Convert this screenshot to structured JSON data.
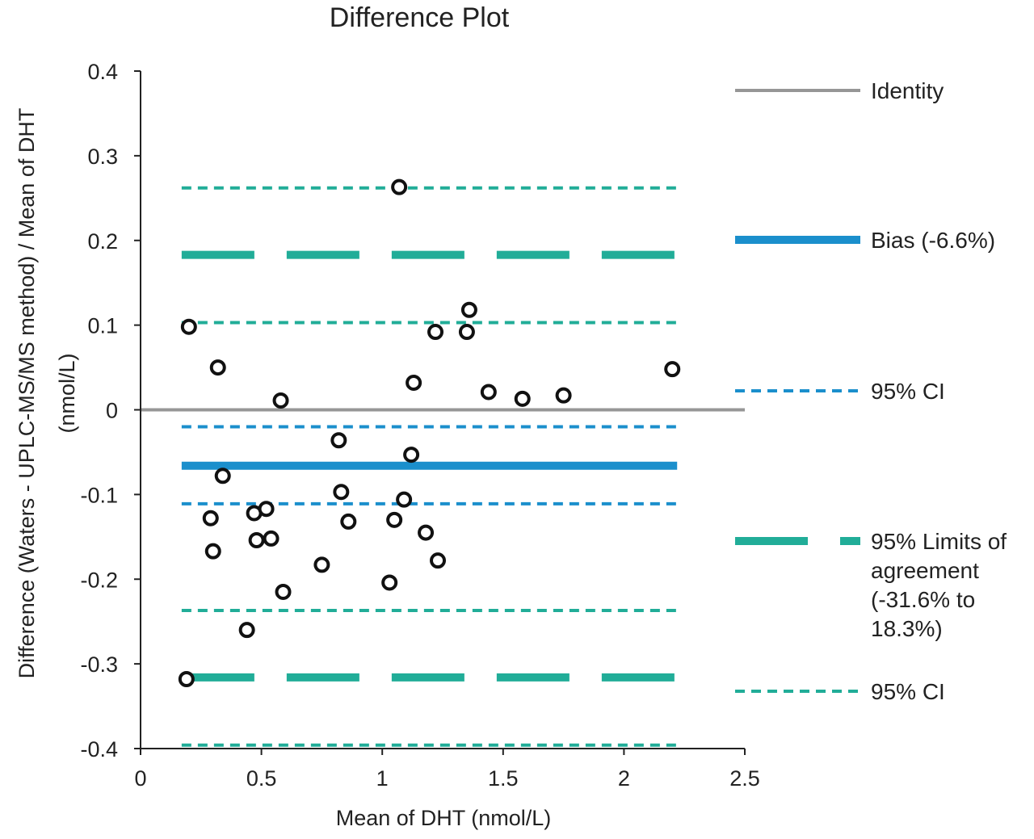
{
  "chart_data": {
    "type": "scatter",
    "title": "Difference Plot",
    "xlabel": "Mean of DHT (nmol/L)",
    "ylabel_line1": "Difference (Waters - UPLC-MS/MS method) / Mean of DHT",
    "ylabel_line2": "(nmol/L)",
    "xlim": [
      0,
      2.5
    ],
    "ylim": [
      -0.4,
      0.4
    ],
    "x_ticks": [
      0,
      0.5,
      1,
      1.5,
      2,
      2.5
    ],
    "x_tick_labels": [
      "0",
      "0.5",
      "1",
      "1.5",
      "2",
      "2.5"
    ],
    "y_ticks": [
      0.4,
      0.3,
      0.2,
      0.1,
      0,
      -0.1,
      -0.2,
      -0.3,
      -0.4
    ],
    "y_tick_labels": [
      "0.4",
      "0.3",
      "0.2",
      "0.1",
      "0",
      "-0.1",
      "-0.2",
      "-0.3",
      "-0.4"
    ],
    "points": [
      {
        "x": 0.19,
        "y": -0.318
      },
      {
        "x": 0.2,
        "y": 0.098
      },
      {
        "x": 0.29,
        "y": -0.128
      },
      {
        "x": 0.3,
        "y": -0.167
      },
      {
        "x": 0.32,
        "y": 0.05
      },
      {
        "x": 0.34,
        "y": -0.078
      },
      {
        "x": 0.44,
        "y": -0.26
      },
      {
        "x": 0.47,
        "y": -0.122
      },
      {
        "x": 0.48,
        "y": -0.154
      },
      {
        "x": 0.52,
        "y": -0.117
      },
      {
        "x": 0.54,
        "y": -0.152
      },
      {
        "x": 0.58,
        "y": 0.011
      },
      {
        "x": 0.59,
        "y": -0.215
      },
      {
        "x": 0.75,
        "y": -0.183
      },
      {
        "x": 0.82,
        "y": -0.036
      },
      {
        "x": 0.83,
        "y": -0.097
      },
      {
        "x": 0.86,
        "y": -0.132
      },
      {
        "x": 1.03,
        "y": -0.204
      },
      {
        "x": 1.05,
        "y": -0.13
      },
      {
        "x": 1.07,
        "y": 0.263
      },
      {
        "x": 1.09,
        "y": -0.106
      },
      {
        "x": 1.12,
        "y": -0.053
      },
      {
        "x": 1.13,
        "y": 0.032
      },
      {
        "x": 1.18,
        "y": -0.145
      },
      {
        "x": 1.22,
        "y": 0.092
      },
      {
        "x": 1.23,
        "y": -0.178
      },
      {
        "x": 1.35,
        "y": 0.092
      },
      {
        "x": 1.36,
        "y": 0.118
      },
      {
        "x": 1.44,
        "y": 0.021
      },
      {
        "x": 1.58,
        "y": 0.013
      },
      {
        "x": 1.75,
        "y": 0.017
      },
      {
        "x": 2.2,
        "y": 0.048
      }
    ],
    "lines": [
      {
        "name": "Identity",
        "y": 0,
        "x_range": [
          0,
          2.5
        ],
        "color": "#969696",
        "style": "solid",
        "width": 4
      },
      {
        "name": "Bias (-6.6%)",
        "y": -0.066,
        "x_range": [
          0.17,
          2.22
        ],
        "color": "#1b8fcc",
        "style": "solid",
        "width": 10
      },
      {
        "name": "95% CI (bias upper)",
        "y": -0.02,
        "x_range": [
          0.17,
          2.22
        ],
        "color": "#1b8fcc",
        "style": "dashed",
        "width": 4
      },
      {
        "name": "95% CI (bias lower)",
        "y": -0.111,
        "x_range": [
          0.17,
          2.22
        ],
        "color": "#1b8fcc",
        "style": "dashed",
        "width": 4
      },
      {
        "name": "Upper limit of agreement",
        "y": 0.183,
        "x_range": [
          0.17,
          2.22
        ],
        "color": "#21ad98",
        "style": "long-dash",
        "width": 10
      },
      {
        "name": "Lower limit of agreement",
        "y": -0.316,
        "x_range": [
          0.17,
          2.22
        ],
        "color": "#21ad98",
        "style": "long-dash",
        "width": 10
      },
      {
        "name": "95% CI (upper LoA, top)",
        "y": 0.262,
        "x_range": [
          0.17,
          2.22
        ],
        "color": "#21ad98",
        "style": "dashed",
        "width": 4
      },
      {
        "name": "95% CI (upper LoA, bottom)",
        "y": 0.103,
        "x_range": [
          0.17,
          2.22
        ],
        "color": "#21ad98",
        "style": "dashed",
        "width": 4
      },
      {
        "name": "95% CI (lower LoA, top)",
        "y": -0.237,
        "x_range": [
          0.17,
          2.22
        ],
        "color": "#21ad98",
        "style": "dashed",
        "width": 4
      },
      {
        "name": "95% CI (lower LoA, bottom)",
        "y": -0.396,
        "x_range": [
          0.17,
          2.22
        ],
        "color": "#21ad98",
        "style": "dashed",
        "width": 4
      }
    ],
    "legend": {
      "placement": "right",
      "entries": [
        {
          "lines": [
            "Identity"
          ],
          "color": "#969696",
          "style": "solid"
        },
        {
          "lines": [
            "Bias (-6.6%)"
          ],
          "color": "#1b8fcc",
          "style": "solid-thick"
        },
        {
          "lines": [
            "95% CI"
          ],
          "color": "#1b8fcc",
          "style": "dashed"
        },
        {
          "lines": [
            "95% Limits of",
            "agreement",
            "(-31.6% to",
            "18.3%)"
          ],
          "color": "#21ad98",
          "style": "long-dash"
        },
        {
          "lines": [
            "95% CI"
          ],
          "color": "#21ad98",
          "style": "dashed"
        }
      ]
    }
  }
}
